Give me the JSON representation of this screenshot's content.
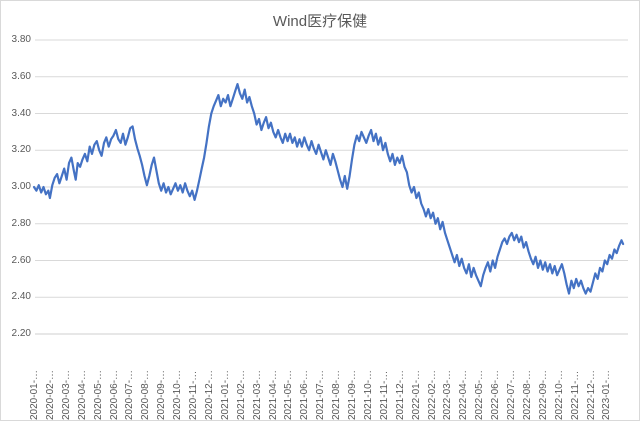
{
  "chart": {
    "colors": {
      "line": "#4472C4",
      "grid": "#D9D9D9",
      "axis_line": "#CFCFCF",
      "axis_text": "#595959",
      "title_text": "#595959",
      "border": "#D9D9D9",
      "background": "#FFFFFF"
    }
  },
  "chart_data": {
    "type": "line",
    "title": "Wind医疗保健",
    "legend": "none",
    "grid": "horizontal",
    "y_axis": {
      "min": 2.2,
      "max": 3.8,
      "step": 0.2,
      "tick_labels": [
        "3.80",
        "3.60",
        "3.40",
        "3.20",
        "3.00",
        "2.80",
        "2.60",
        "2.40",
        "2.20"
      ]
    },
    "x_axis": {
      "unit": "months since 2020-01, monthly date ticks (truncated dates)",
      "tick_labels": [
        "2020-01-…",
        "2020-02-…",
        "2020-03-…",
        "2020-04-…",
        "2020-05-…",
        "2020-06-…",
        "2020-07-…",
        "2020-08-…",
        "2020-09-…",
        "2020-10-…",
        "2020-11-…",
        "2020-12-…",
        "2021-01-…",
        "2021-02-…",
        "2021-03-…",
        "2021-04-…",
        "2021-05-…",
        "2021-06-…",
        "2021-07-…",
        "2021-08-…",
        "2021-09-…",
        "2021-10-…",
        "2021-11-…",
        "2021-12-…",
        "2022-01-…",
        "2022-02-…",
        "2022-03-…",
        "2022-04-…",
        "2022-05-…",
        "2022-06-…",
        "2022-07-…",
        "2022-08-…",
        "2022-09-…",
        "2022-10-…",
        "2022-11-…",
        "2022-12-…",
        "2023-01-…"
      ]
    },
    "series": [
      {
        "name": "Wind医疗保健",
        "color": "#4472C4",
        "points": [
          [
            0,
            3.0
          ],
          [
            0.15,
            2.98
          ],
          [
            0.3,
            3.01
          ],
          [
            0.45,
            2.97
          ],
          [
            0.6,
            3.0
          ],
          [
            0.75,
            2.96
          ],
          [
            0.9,
            2.98
          ],
          [
            1.0,
            2.94
          ],
          [
            1.15,
            3.01
          ],
          [
            1.3,
            3.05
          ],
          [
            1.45,
            3.07
          ],
          [
            1.6,
            3.02
          ],
          [
            1.75,
            3.06
          ],
          [
            1.9,
            3.1
          ],
          [
            2.05,
            3.04
          ],
          [
            2.2,
            3.13
          ],
          [
            2.35,
            3.16
          ],
          [
            2.5,
            3.09
          ],
          [
            2.62,
            3.04
          ],
          [
            2.75,
            3.13
          ],
          [
            2.9,
            3.11
          ],
          [
            3.05,
            3.15
          ],
          [
            3.2,
            3.18
          ],
          [
            3.35,
            3.14
          ],
          [
            3.5,
            3.22
          ],
          [
            3.65,
            3.18
          ],
          [
            3.8,
            3.23
          ],
          [
            3.95,
            3.25
          ],
          [
            4.1,
            3.2
          ],
          [
            4.25,
            3.17
          ],
          [
            4.4,
            3.24
          ],
          [
            4.55,
            3.27
          ],
          [
            4.7,
            3.22
          ],
          [
            4.85,
            3.26
          ],
          [
            5.0,
            3.28
          ],
          [
            5.15,
            3.31
          ],
          [
            5.3,
            3.26
          ],
          [
            5.45,
            3.24
          ],
          [
            5.6,
            3.29
          ],
          [
            5.75,
            3.23
          ],
          [
            5.9,
            3.27
          ],
          [
            6.05,
            3.32
          ],
          [
            6.2,
            3.33
          ],
          [
            6.35,
            3.26
          ],
          [
            6.5,
            3.21
          ],
          [
            6.65,
            3.17
          ],
          [
            6.8,
            3.12
          ],
          [
            6.95,
            3.06
          ],
          [
            7.1,
            3.01
          ],
          [
            7.25,
            3.06
          ],
          [
            7.4,
            3.12
          ],
          [
            7.55,
            3.16
          ],
          [
            7.7,
            3.09
          ],
          [
            7.85,
            3.02
          ],
          [
            8.0,
            2.98
          ],
          [
            8.15,
            3.02
          ],
          [
            8.3,
            2.97
          ],
          [
            8.45,
            3.0
          ],
          [
            8.6,
            2.96
          ],
          [
            8.75,
            2.99
          ],
          [
            8.9,
            3.02
          ],
          [
            9.05,
            2.98
          ],
          [
            9.2,
            3.01
          ],
          [
            9.35,
            2.97
          ],
          [
            9.5,
            3.02
          ],
          [
            9.65,
            2.98
          ],
          [
            9.8,
            2.95
          ],
          [
            9.95,
            2.98
          ],
          [
            10.1,
            2.93
          ],
          [
            10.25,
            2.98
          ],
          [
            10.4,
            3.04
          ],
          [
            10.55,
            3.1
          ],
          [
            10.7,
            3.16
          ],
          [
            10.85,
            3.24
          ],
          [
            11.0,
            3.33
          ],
          [
            11.15,
            3.4
          ],
          [
            11.3,
            3.44
          ],
          [
            11.45,
            3.47
          ],
          [
            11.6,
            3.5
          ],
          [
            11.75,
            3.44
          ],
          [
            11.9,
            3.48
          ],
          [
            12.05,
            3.46
          ],
          [
            12.2,
            3.5
          ],
          [
            12.35,
            3.44
          ],
          [
            12.5,
            3.48
          ],
          [
            12.65,
            3.52
          ],
          [
            12.8,
            3.56
          ],
          [
            12.95,
            3.51
          ],
          [
            13.1,
            3.48
          ],
          [
            13.25,
            3.53
          ],
          [
            13.4,
            3.46
          ],
          [
            13.55,
            3.49
          ],
          [
            13.7,
            3.44
          ],
          [
            13.85,
            3.4
          ],
          [
            14.0,
            3.34
          ],
          [
            14.15,
            3.37
          ],
          [
            14.3,
            3.31
          ],
          [
            14.45,
            3.35
          ],
          [
            14.6,
            3.38
          ],
          [
            14.75,
            3.32
          ],
          [
            14.9,
            3.35
          ],
          [
            15.05,
            3.3
          ],
          [
            15.2,
            3.27
          ],
          [
            15.35,
            3.31
          ],
          [
            15.5,
            3.27
          ],
          [
            15.65,
            3.24
          ],
          [
            15.8,
            3.29
          ],
          [
            15.95,
            3.25
          ],
          [
            16.1,
            3.29
          ],
          [
            16.25,
            3.24
          ],
          [
            16.4,
            3.27
          ],
          [
            16.55,
            3.22
          ],
          [
            16.7,
            3.26
          ],
          [
            16.85,
            3.22
          ],
          [
            17.0,
            3.27
          ],
          [
            17.15,
            3.23
          ],
          [
            17.3,
            3.2
          ],
          [
            17.45,
            3.25
          ],
          [
            17.6,
            3.21
          ],
          [
            17.75,
            3.18
          ],
          [
            17.9,
            3.23
          ],
          [
            18.05,
            3.19
          ],
          [
            18.2,
            3.15
          ],
          [
            18.35,
            3.2
          ],
          [
            18.5,
            3.16
          ],
          [
            18.65,
            3.12
          ],
          [
            18.8,
            3.18
          ],
          [
            18.95,
            3.14
          ],
          [
            19.1,
            3.09
          ],
          [
            19.25,
            3.04
          ],
          [
            19.4,
            3.0
          ],
          [
            19.55,
            3.06
          ],
          [
            19.7,
            2.99
          ],
          [
            19.85,
            3.06
          ],
          [
            20.0,
            3.15
          ],
          [
            20.15,
            3.23
          ],
          [
            20.3,
            3.28
          ],
          [
            20.45,
            3.25
          ],
          [
            20.6,
            3.3
          ],
          [
            20.75,
            3.27
          ],
          [
            20.9,
            3.24
          ],
          [
            21.05,
            3.28
          ],
          [
            21.2,
            3.31
          ],
          [
            21.35,
            3.25
          ],
          [
            21.5,
            3.29
          ],
          [
            21.65,
            3.23
          ],
          [
            21.8,
            3.27
          ],
          [
            21.95,
            3.2
          ],
          [
            22.1,
            3.24
          ],
          [
            22.25,
            3.18
          ],
          [
            22.4,
            3.14
          ],
          [
            22.55,
            3.18
          ],
          [
            22.7,
            3.12
          ],
          [
            22.85,
            3.16
          ],
          [
            23.0,
            3.13
          ],
          [
            23.15,
            3.17
          ],
          [
            23.3,
            3.11
          ],
          [
            23.45,
            3.08
          ],
          [
            23.6,
            3.01
          ],
          [
            23.75,
            2.97
          ],
          [
            23.9,
            3.0
          ],
          [
            24.05,
            2.94
          ],
          [
            24.2,
            2.97
          ],
          [
            24.35,
            2.91
          ],
          [
            24.5,
            2.88
          ],
          [
            24.65,
            2.84
          ],
          [
            24.8,
            2.88
          ],
          [
            24.95,
            2.83
          ],
          [
            25.1,
            2.86
          ],
          [
            25.25,
            2.8
          ],
          [
            25.4,
            2.83
          ],
          [
            25.55,
            2.77
          ],
          [
            25.7,
            2.81
          ],
          [
            25.85,
            2.75
          ],
          [
            26.0,
            2.71
          ],
          [
            26.15,
            2.67
          ],
          [
            26.3,
            2.63
          ],
          [
            26.45,
            2.59
          ],
          [
            26.6,
            2.63
          ],
          [
            26.75,
            2.57
          ],
          [
            26.9,
            2.61
          ],
          [
            27.05,
            2.56
          ],
          [
            27.2,
            2.53
          ],
          [
            27.35,
            2.58
          ],
          [
            27.5,
            2.51
          ],
          [
            27.65,
            2.56
          ],
          [
            27.8,
            2.52
          ],
          [
            27.95,
            2.49
          ],
          [
            28.1,
            2.46
          ],
          [
            28.25,
            2.52
          ],
          [
            28.4,
            2.56
          ],
          [
            28.55,
            2.59
          ],
          [
            28.7,
            2.54
          ],
          [
            28.85,
            2.6
          ],
          [
            29.0,
            2.56
          ],
          [
            29.15,
            2.62
          ],
          [
            29.3,
            2.66
          ],
          [
            29.45,
            2.7
          ],
          [
            29.6,
            2.72
          ],
          [
            29.75,
            2.69
          ],
          [
            29.9,
            2.73
          ],
          [
            30.05,
            2.75
          ],
          [
            30.2,
            2.71
          ],
          [
            30.35,
            2.74
          ],
          [
            30.5,
            2.7
          ],
          [
            30.65,
            2.73
          ],
          [
            30.8,
            2.67
          ],
          [
            30.95,
            2.7
          ],
          [
            31.1,
            2.65
          ],
          [
            31.25,
            2.61
          ],
          [
            31.4,
            2.58
          ],
          [
            31.55,
            2.62
          ],
          [
            31.7,
            2.56
          ],
          [
            31.85,
            2.6
          ],
          [
            32.0,
            2.55
          ],
          [
            32.15,
            2.59
          ],
          [
            32.3,
            2.54
          ],
          [
            32.45,
            2.58
          ],
          [
            32.6,
            2.53
          ],
          [
            32.75,
            2.57
          ],
          [
            32.9,
            2.52
          ],
          [
            33.05,
            2.55
          ],
          [
            33.2,
            2.58
          ],
          [
            33.35,
            2.53
          ],
          [
            33.5,
            2.47
          ],
          [
            33.65,
            2.42
          ],
          [
            33.8,
            2.49
          ],
          [
            33.95,
            2.45
          ],
          [
            34.1,
            2.5
          ],
          [
            34.25,
            2.46
          ],
          [
            34.4,
            2.49
          ],
          [
            34.55,
            2.45
          ],
          [
            34.7,
            2.42
          ],
          [
            34.85,
            2.45
          ],
          [
            35.0,
            2.43
          ],
          [
            35.15,
            2.48
          ],
          [
            35.3,
            2.53
          ],
          [
            35.45,
            2.5
          ],
          [
            35.6,
            2.56
          ],
          [
            35.75,
            2.54
          ],
          [
            35.9,
            2.6
          ],
          [
            36.05,
            2.58
          ],
          [
            36.2,
            2.63
          ],
          [
            36.35,
            2.61
          ],
          [
            36.5,
            2.66
          ],
          [
            36.65,
            2.64
          ],
          [
            36.8,
            2.68
          ],
          [
            36.95,
            2.71
          ],
          [
            37.05,
            2.69
          ]
        ]
      }
    ]
  }
}
